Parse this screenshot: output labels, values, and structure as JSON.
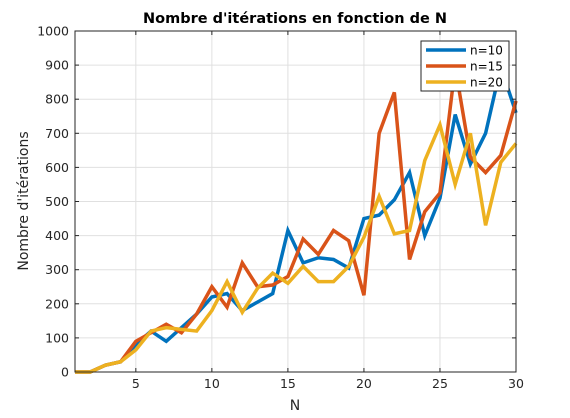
{
  "chart_data": {
    "type": "line",
    "title": "Nombre d'itérations en fonction de N",
    "xlabel": "N",
    "ylabel": "Nombre d'itérations",
    "xlim": [
      1,
      30
    ],
    "ylim": [
      0,
      1000
    ],
    "x_ticks": [
      5,
      10,
      15,
      20,
      25,
      30
    ],
    "y_ticks": [
      0,
      100,
      200,
      300,
      400,
      500,
      600,
      700,
      800,
      900,
      1000
    ],
    "grid": true,
    "legend_position": "top-right",
    "x": [
      1,
      2,
      3,
      4,
      5,
      6,
      7,
      8,
      9,
      10,
      11,
      12,
      13,
      14,
      15,
      16,
      17,
      18,
      19,
      20,
      21,
      22,
      23,
      24,
      25,
      26,
      27,
      28,
      29,
      30
    ],
    "series": [
      {
        "name": "n=10",
        "color": "#0072BD",
        "values": [
          0,
          0,
          20,
          30,
          80,
          120,
          90,
          130,
          170,
          220,
          230,
          180,
          205,
          230,
          415,
          320,
          335,
          330,
          305,
          450,
          460,
          505,
          585,
          400,
          510,
          755,
          610,
          700,
          895,
          760
        ]
      },
      {
        "name": "n=15",
        "color": "#D95319",
        "values": [
          0,
          0,
          20,
          30,
          90,
          115,
          140,
          115,
          170,
          250,
          190,
          320,
          250,
          255,
          280,
          390,
          345,
          415,
          385,
          225,
          700,
          820,
          330,
          470,
          525,
          895,
          630,
          585,
          635,
          795
        ]
      },
      {
        "name": "n=20",
        "color": "#EDB120",
        "values": [
          0,
          0,
          20,
          30,
          65,
          120,
          130,
          125,
          120,
          180,
          265,
          175,
          245,
          290,
          260,
          310,
          265,
          265,
          310,
          395,
          515,
          405,
          415,
          620,
          725,
          550,
          700,
          430,
          615,
          670
        ]
      }
    ]
  }
}
